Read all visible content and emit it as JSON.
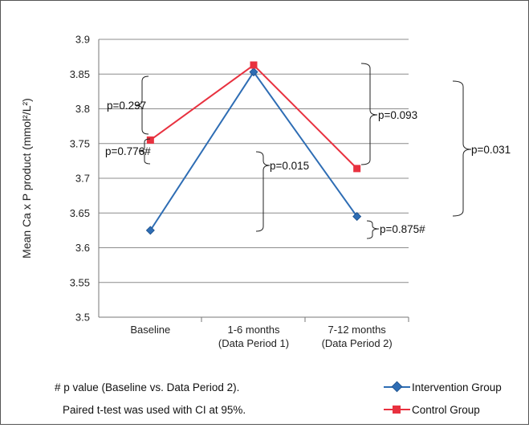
{
  "chart_data": {
    "type": "line",
    "ylabel": "Mean Ca x P product (mmol²/L²)",
    "ylim": [
      3.5,
      3.9
    ],
    "yticks": [
      "3.5",
      "3.55",
      "3.6",
      "3.65",
      "3.7",
      "3.75",
      "3.8",
      "3.85",
      "3.9"
    ],
    "categories": [
      [
        "Baseline"
      ],
      [
        "1-6 months",
        "(Data Period 1)"
      ],
      [
        "7-12 months",
        "(Data Period 2)"
      ]
    ],
    "grid": true,
    "series": [
      {
        "name": "Intervention Group",
        "values": [
          3.625,
          3.853,
          3.645
        ],
        "color": "#2e6db4",
        "marker": "diamond"
      },
      {
        "name": "Control Group",
        "values": [
          3.755,
          3.863,
          3.714
        ],
        "color": "#e8313f",
        "marker": "square"
      }
    ],
    "annotations": [
      "p=0.297",
      "p=0.776#",
      "p=0.015",
      "p=0.093",
      "p=0.031",
      "p=0.875#"
    ],
    "notes": [
      "# p value (Baseline vs. Data Period 2).",
      "Paired t-test was used with CI at 95%."
    ],
    "legend_position": "bottom-right"
  }
}
